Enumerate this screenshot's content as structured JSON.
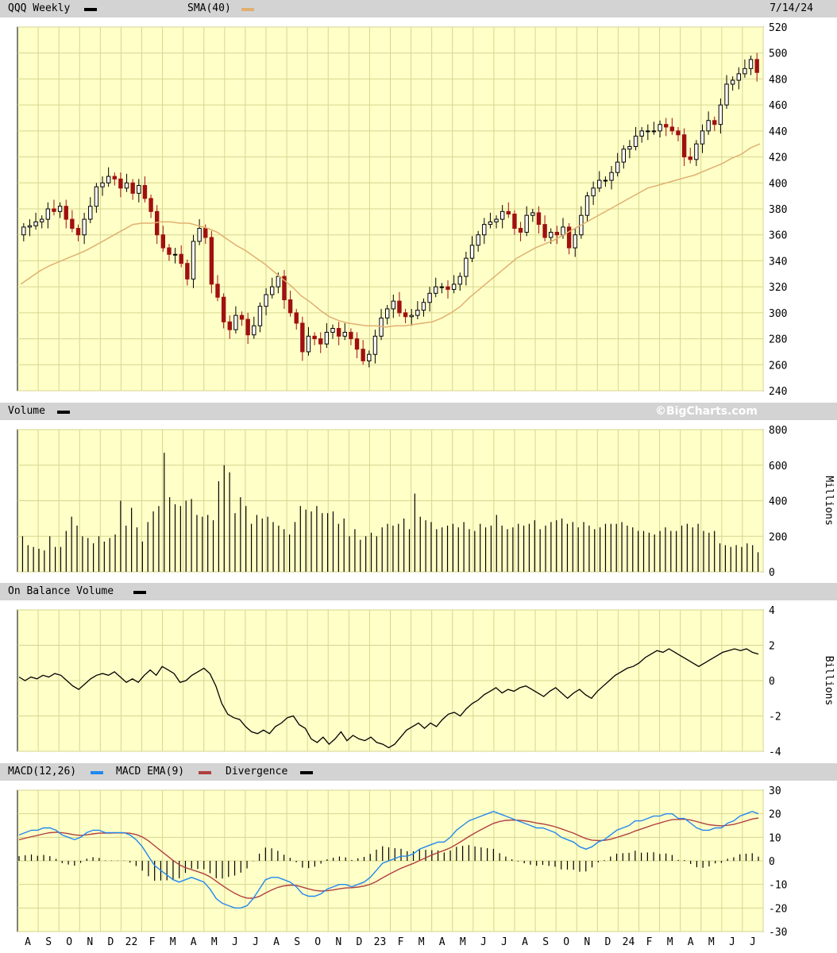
{
  "header": {
    "symbol_label": "QQQ Weekly",
    "sma_label": "SMA(40)",
    "date": "7/14/24",
    "volume_label": "Volume",
    "watermark": "©BigCharts.com",
    "obv_label": "On Balance Volume",
    "macd_label": "MACD(12,26)",
    "macd_ema_label": "MACD EMA(9)",
    "divergence_label": "Divergence"
  },
  "colors": {
    "panel_bg": "#ffffc8",
    "grid": "#d6d690",
    "header_bg": "#d3d3d3",
    "up": "#000000",
    "down": "#a01010",
    "sma": "#e0b070",
    "macd": "#2288ee",
    "macd_ema": "#b04040",
    "line": "#000000"
  },
  "chart_data": [
    {
      "type": "candlestick",
      "title": "QQQ Weekly",
      "series_names": [
        "QQQ Weekly",
        "SMA(40)"
      ],
      "x_tick_labels": [
        "A",
        "S",
        "O",
        "N",
        "D",
        "22",
        "F",
        "M",
        "A",
        "M",
        "J",
        "J",
        "A",
        "S",
        "O",
        "N",
        "D",
        "23",
        "F",
        "M",
        "A",
        "M",
        "J",
        "J",
        "A",
        "S",
        "O",
        "N",
        "D",
        "24",
        "F",
        "M",
        "A",
        "M",
        "J",
        "J"
      ],
      "ylim": [
        240,
        520
      ],
      "y_ticks": [
        240,
        260,
        280,
        300,
        320,
        340,
        360,
        380,
        400,
        420,
        440,
        460,
        480,
        500,
        520
      ],
      "close": [
        366,
        367,
        370,
        372,
        380,
        378,
        382,
        372,
        365,
        360,
        372,
        382,
        397,
        400,
        405,
        403,
        396,
        400,
        392,
        398,
        388,
        378,
        360,
        350,
        345,
        345,
        338,
        326,
        355,
        365,
        358,
        322,
        312,
        293,
        287,
        298,
        295,
        283,
        290,
        305,
        314,
        320,
        328,
        310,
        300,
        292,
        270,
        282,
        280,
        276,
        285,
        288,
        282,
        285,
        280,
        272,
        263,
        268,
        282,
        296,
        303,
        309,
        300,
        297,
        298,
        302,
        308,
        315,
        320,
        320,
        318,
        322,
        328,
        342,
        352,
        360,
        368,
        370,
        372,
        378,
        376,
        365,
        362,
        375,
        377,
        368,
        358,
        362,
        360,
        366,
        350,
        360,
        375,
        390,
        396,
        402,
        402,
        408,
        416,
        426,
        428,
        436,
        440,
        440,
        440,
        445,
        443,
        440,
        437,
        420,
        418,
        430,
        440,
        448,
        445,
        460,
        476,
        479,
        484,
        488,
        495,
        485
      ],
      "sma40": [
        322,
        327,
        332,
        336,
        339,
        342,
        345,
        348,
        352,
        356,
        360,
        364,
        368,
        369,
        369,
        370,
        370,
        369,
        369,
        367,
        365,
        362,
        357,
        352,
        348,
        343,
        338,
        332,
        326,
        320,
        313,
        308,
        302,
        297,
        294,
        292,
        291,
        290,
        290,
        289,
        290,
        290,
        291,
        292,
        293,
        296,
        300,
        305,
        312,
        318,
        324,
        330,
        336,
        342,
        346,
        350,
        353,
        356,
        360,
        364,
        368,
        372,
        376,
        380,
        384,
        388,
        392,
        396,
        398,
        400,
        402,
        404,
        406,
        409,
        412,
        415,
        419,
        422,
        427,
        430
      ]
    },
    {
      "type": "bar",
      "title": "Volume",
      "ylabel": "Millions",
      "ylim": [
        0,
        800
      ],
      "y_ticks": [
        0,
        200,
        400,
        600,
        800
      ],
      "values": [
        200,
        150,
        140,
        130,
        120,
        200,
        140,
        140,
        230,
        310,
        260,
        200,
        190,
        160,
        200,
        170,
        190,
        210,
        400,
        260,
        360,
        250,
        170,
        280,
        340,
        370,
        670,
        420,
        380,
        370,
        400,
        410,
        320,
        310,
        320,
        290,
        510,
        600,
        560,
        330,
        420,
        370,
        270,
        320,
        300,
        310,
        280,
        260,
        240,
        210,
        280,
        370,
        350,
        340,
        370,
        330,
        330,
        340,
        270,
        300,
        200,
        240,
        180,
        200,
        220,
        200,
        250,
        270,
        260,
        270,
        300,
        240,
        440,
        310,
        290,
        280,
        240,
        250,
        260,
        270,
        250,
        280,
        240,
        230,
        270,
        250,
        260,
        320,
        260,
        240,
        250,
        270,
        260,
        270,
        290,
        240,
        260,
        280,
        290,
        300,
        270,
        280,
        250,
        280,
        260,
        240,
        250,
        270,
        270,
        270,
        280,
        260,
        250,
        230,
        230,
        220,
        210,
        230,
        250,
        230,
        230,
        260,
        270,
        250,
        270,
        230,
        220,
        230,
        160,
        150,
        140,
        150,
        140,
        160,
        150,
        110
      ]
    },
    {
      "type": "line",
      "title": "On Balance Volume",
      "ylabel": "Billions",
      "ylim": [
        -4,
        4
      ],
      "y_ticks": [
        -4,
        -2,
        0,
        2,
        4
      ],
      "values": [
        0.2,
        0.0,
        0.2,
        0.1,
        0.3,
        0.2,
        0.4,
        0.3,
        0.0,
        -0.3,
        -0.5,
        -0.2,
        0.1,
        0.3,
        0.4,
        0.3,
        0.5,
        0.2,
        -0.1,
        0.1,
        -0.1,
        0.3,
        0.6,
        0.3,
        0.8,
        0.6,
        0.4,
        -0.1,
        0.0,
        0.3,
        0.5,
        0.7,
        0.4,
        -0.3,
        -1.3,
        -1.9,
        -2.1,
        -2.2,
        -2.6,
        -2.9,
        -3.0,
        -2.8,
        -3.0,
        -2.6,
        -2.4,
        -2.1,
        -2.0,
        -2.5,
        -2.7,
        -3.3,
        -3.5,
        -3.2,
        -3.6,
        -3.3,
        -2.9,
        -3.4,
        -3.1,
        -3.3,
        -3.4,
        -3.2,
        -3.5,
        -3.6,
        -3.8,
        -3.6,
        -3.2,
        -2.8,
        -2.6,
        -2.4,
        -2.7,
        -2.4,
        -2.6,
        -2.2,
        -1.9,
        -1.8,
        -2.0,
        -1.6,
        -1.3,
        -1.1,
        -0.8,
        -0.6,
        -0.4,
        -0.7,
        -0.5,
        -0.6,
        -0.4,
        -0.3,
        -0.5,
        -0.7,
        -0.9,
        -0.6,
        -0.4,
        -0.7,
        -1.0,
        -0.7,
        -0.5,
        -0.8,
        -1.0,
        -0.6,
        -0.3,
        0.0,
        0.3,
        0.5,
        0.7,
        0.8,
        1.0,
        1.3,
        1.5,
        1.7,
        1.6,
        1.8,
        1.6,
        1.4,
        1.2,
        1.0,
        0.8,
        1.0,
        1.2,
        1.4,
        1.6,
        1.7,
        1.8,
        1.7,
        1.8,
        1.6,
        1.5
      ]
    },
    {
      "type": "line",
      "title": "MACD(12,26)",
      "series_names": [
        "MACD(12,26)",
        "MACD EMA(9)",
        "Divergence"
      ],
      "ylim": [
        -30,
        30
      ],
      "y_ticks": [
        -30,
        -20,
        -10,
        0,
        10,
        20,
        30
      ],
      "macd": [
        11,
        12,
        13,
        13,
        14,
        14,
        13,
        11,
        10,
        9,
        10,
        12,
        13,
        13,
        12,
        12,
        12,
        12,
        11,
        9,
        6,
        2,
        -2,
        -4,
        -6,
        -8,
        -9,
        -8,
        -7,
        -8,
        -9,
        -12,
        -16,
        -18,
        -19,
        -20,
        -20,
        -19,
        -16,
        -12,
        -8,
        -7,
        -7,
        -8,
        -9,
        -11,
        -14,
        -15,
        -15,
        -14,
        -12,
        -11,
        -10,
        -10,
        -11,
        -10,
        -9,
        -7,
        -4,
        -1,
        0,
        1,
        2,
        2,
        3,
        5,
        6,
        7,
        8,
        8,
        10,
        13,
        15,
        17,
        18,
        19,
        20,
        21,
        20,
        19,
        18,
        17,
        16,
        15,
        14,
        14,
        13,
        12,
        10,
        9,
        8,
        6,
        5,
        6,
        8,
        9,
        11,
        13,
        14,
        15,
        17,
        17,
        18,
        19,
        19,
        20,
        20,
        18,
        18,
        16,
        14,
        13,
        13,
        14,
        14,
        16,
        17,
        19,
        20,
        21,
        20
      ]
    }
  ]
}
